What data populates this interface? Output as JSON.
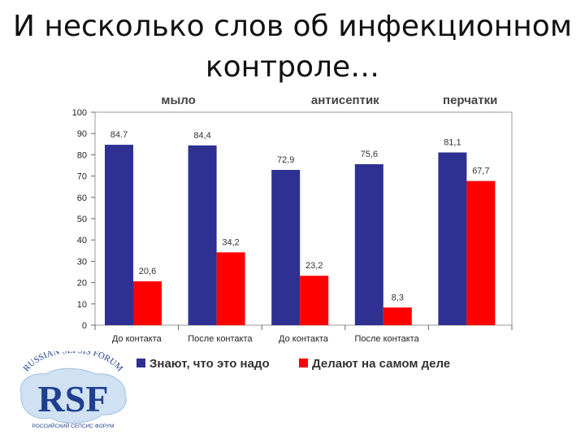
{
  "slide": {
    "title_line1": "И несколько слов об инфекционном",
    "title_line2": "контроле…"
  },
  "logo": {
    "arc_text": "RUSSIAN SEPSIS FORUM",
    "letters": "RSF",
    "subtitle": "РОССИЙСКИЙ СЕПСИС ФОРУМ"
  },
  "chart_data": {
    "type": "bar",
    "title": "",
    "xlabel": "",
    "ylabel": "",
    "ylim": [
      0,
      100
    ],
    "yticks": [
      0,
      10,
      20,
      30,
      40,
      50,
      60,
      70,
      80,
      90,
      100
    ],
    "grid": false,
    "legend_position": "bottom",
    "groups": [
      {
        "label": "мыло",
        "span": [
          0,
          1
        ]
      },
      {
        "label": "антисептик",
        "span": [
          2,
          3
        ]
      },
      {
        "label": "перчатки",
        "span": [
          4,
          4
        ]
      }
    ],
    "categories": [
      "До контакта",
      "После контакта",
      "До контакта",
      "После контакта",
      ""
    ],
    "series": [
      {
        "name": "Знают, что это надо",
        "color": "#2e3192",
        "values": [
          84.7,
          84.4,
          72.9,
          75.6,
          81.1
        ],
        "labels": [
          "84.7",
          "84,4",
          "72,9",
          "75,6",
          "81,1"
        ]
      },
      {
        "name": "Делают на самом деле",
        "color": "#ff0000",
        "values": [
          20.6,
          34.2,
          23.2,
          8.3,
          67.7
        ],
        "labels": [
          "20,6",
          "34,2",
          "23,2",
          "8,3",
          "67,7"
        ]
      }
    ]
  }
}
